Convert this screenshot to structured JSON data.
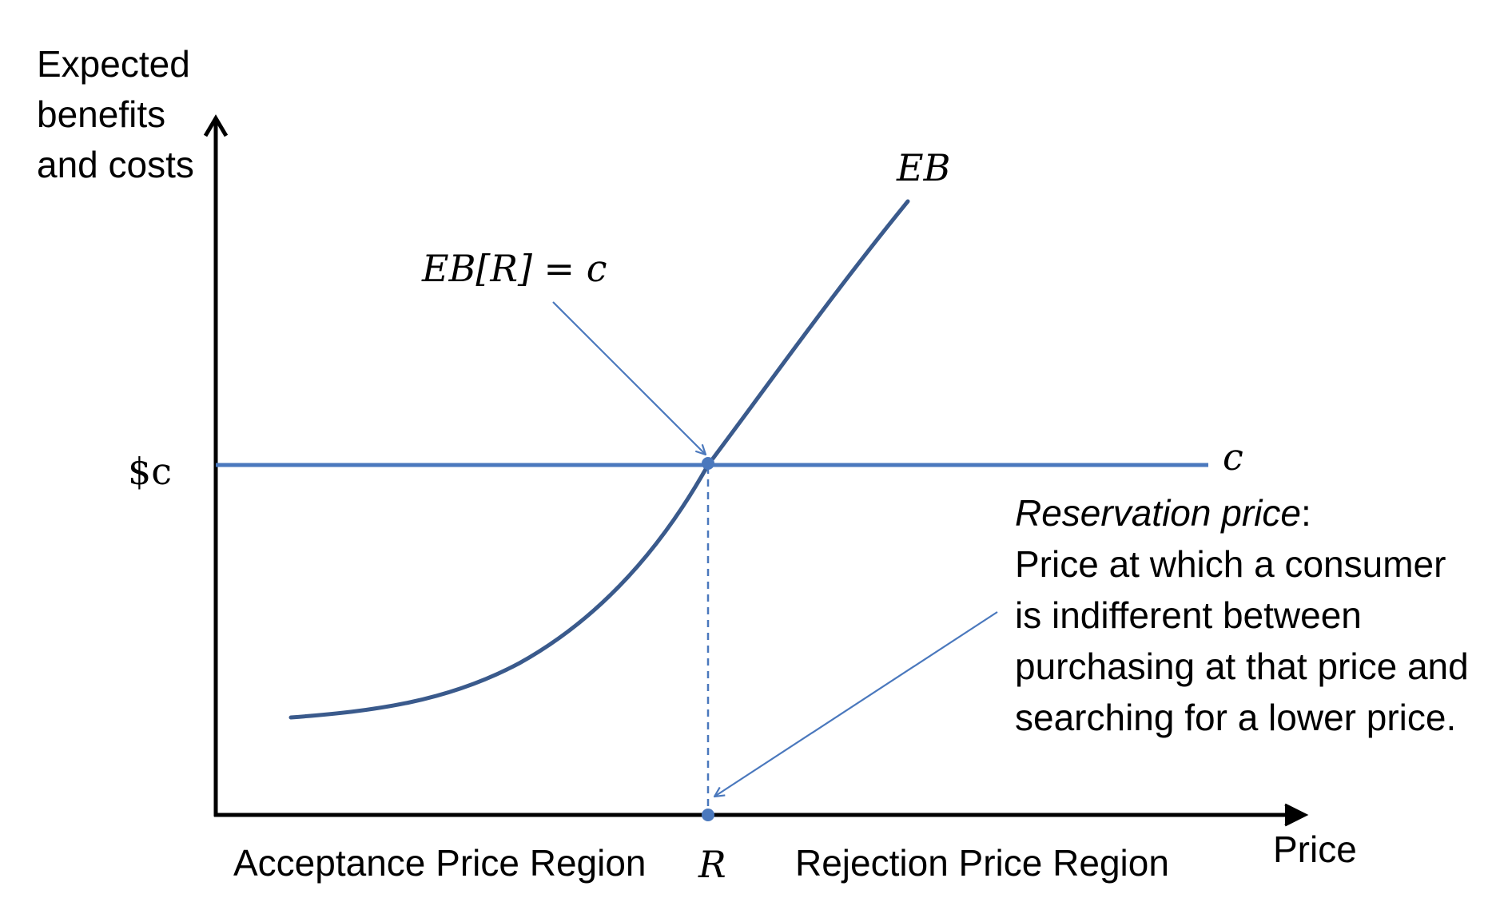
{
  "axes": {
    "y_label_lines": [
      "Expected",
      "benefits",
      "and costs"
    ],
    "x_label": "Price"
  },
  "cost_label_axis": "$c",
  "cost_line_label": "c",
  "curve_label": "EB",
  "intersection_label": "EB[R] = c",
  "reservation_tick": "R",
  "regions": {
    "acceptance": "Acceptance Price Region",
    "rejection": "Rejection Price Region"
  },
  "definition": {
    "term": "Reservation price",
    "term_suffix": ":",
    "lines": [
      "Price at which a consumer",
      "is indifferent between",
      "purchasing at that price and",
      "searching for a lower price."
    ]
  },
  "colors": {
    "axis": "#000000",
    "curve": "#3a5a8c",
    "cost_line": "#4a78bd",
    "pointer": "#4a78bd"
  }
}
